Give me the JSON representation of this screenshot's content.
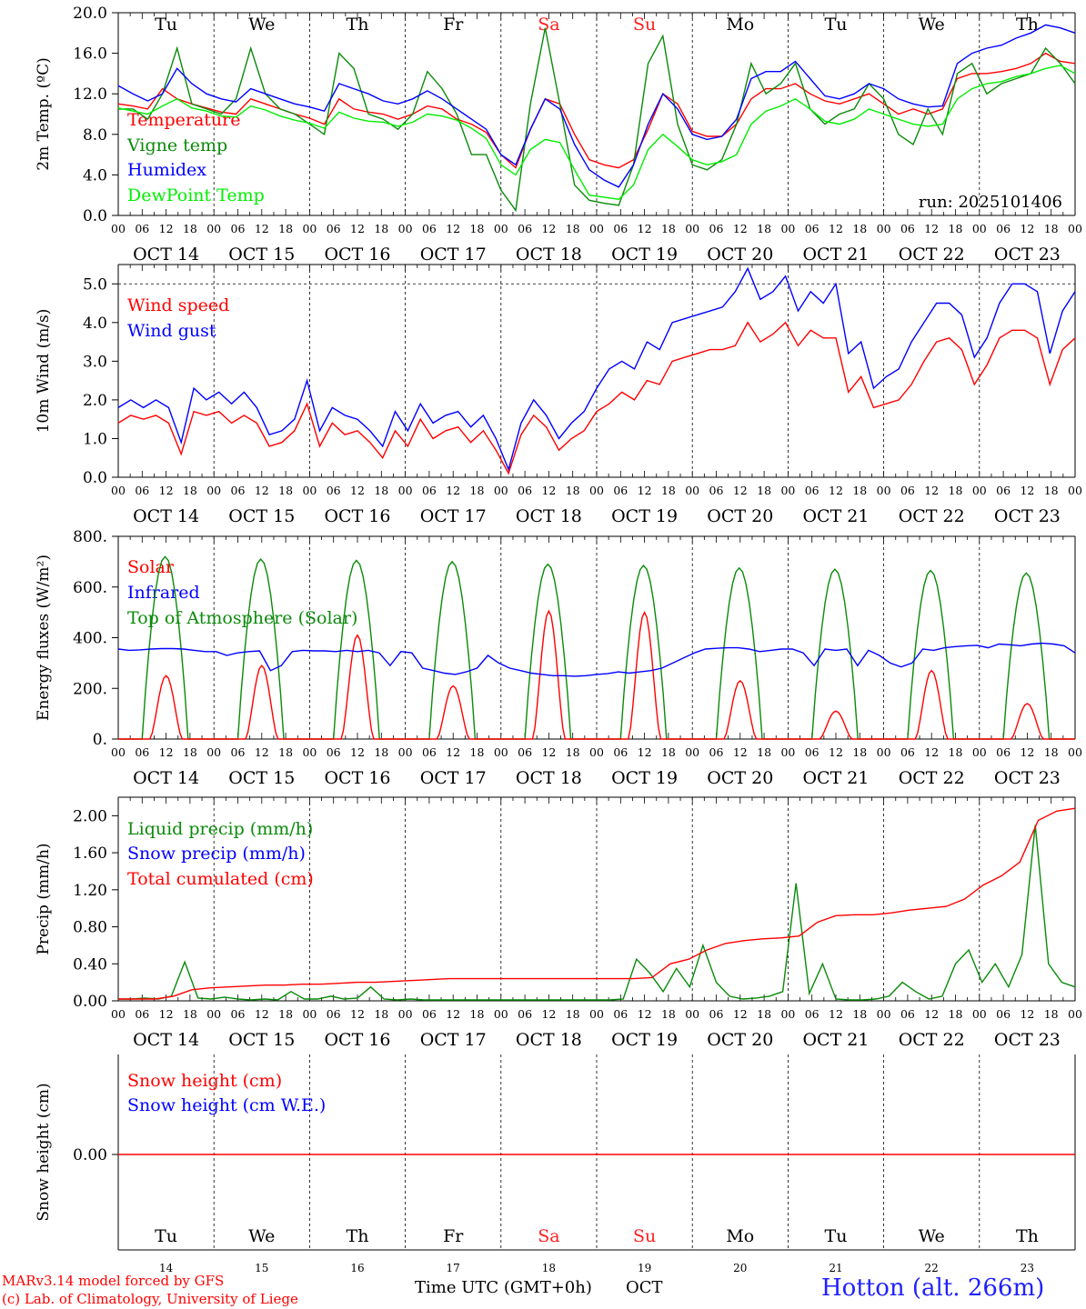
{
  "station": "Hotton (alt. 266m)",
  "credits": [
    "MARv3.14 model forced by GFS",
    "(c) Lab. of Climatology, University of Liege"
  ],
  "x_axis": {
    "title": "Time UTC (GMT+0h)",
    "month": "OCT",
    "hour_ticks": [
      "00",
      "06",
      "12",
      "18"
    ],
    "dates": [
      "OCT 14",
      "OCT 15",
      "OCT 16",
      "OCT 17",
      "OCT 18",
      "OCT 19",
      "OCT 20",
      "OCT 21",
      "OCT 22",
      "OCT 23"
    ],
    "day_numbers": [
      "14",
      "15",
      "16",
      "17",
      "18",
      "19",
      "20",
      "21",
      "22",
      "23"
    ],
    "weekdays": [
      "Tu",
      "We",
      "Th",
      "Fr",
      "Sa",
      "Su",
      "Mo",
      "Tu",
      "We",
      "Th"
    ],
    "weekend_color": "#ff2020"
  },
  "chart_data": [
    {
      "type": "line",
      "ylabel": "2m Temp. (ºC)",
      "ylim": [
        0,
        20
      ],
      "yticks": [
        "0.0",
        "4.0",
        "8.0",
        "12.0",
        "16.0",
        "20.0"
      ],
      "annotation": "run: 2025101406",
      "series": [
        {
          "name": "Temperature",
          "color": "#ff0000",
          "values": [
            11,
            10.8,
            10.5,
            12.5,
            11.5,
            11,
            10.6,
            10.2,
            10,
            11.5,
            11,
            10.5,
            10,
            9.6,
            9,
            11.5,
            10.5,
            10.2,
            10,
            9.5,
            10,
            10.8,
            10.5,
            9.5,
            9,
            8.2,
            6,
            4.7,
            8.5,
            11.5,
            11,
            8,
            5.5,
            5,
            4.7,
            5.5,
            8.5,
            12,
            11,
            8.3,
            7.8,
            7.8,
            9,
            11.5,
            12.5,
            12.5,
            13,
            12,
            11.3,
            11,
            11.5,
            12,
            11,
            10,
            10.5,
            10,
            10.5,
            13.5,
            14,
            14,
            14.2,
            14.5,
            15,
            16,
            15.2,
            15
          ]
        },
        {
          "name": "Vigne temp",
          "color": "#0a8a0a",
          "values": [
            10.5,
            10.5,
            9.5,
            12,
            16.5,
            11,
            10.5,
            10,
            11.5,
            16.5,
            12,
            10.5,
            10,
            9,
            8,
            16,
            14.5,
            10,
            9.5,
            8.5,
            10,
            14.2,
            12.5,
            10,
            6,
            6,
            2.5,
            0.5,
            11,
            18.5,
            11,
            3,
            1.5,
            1.2,
            1,
            5,
            15,
            17.7,
            9,
            5,
            4.5,
            5.5,
            9,
            15,
            12,
            13,
            15,
            10.5,
            9,
            10,
            10.5,
            13,
            11.5,
            8,
            7,
            10.5,
            8,
            14,
            15,
            12,
            13,
            13.5,
            14,
            16.5,
            15,
            13
          ]
        },
        {
          "name": "Humidex",
          "color": "#0000ff",
          "values": [
            12.8,
            12,
            11.3,
            12,
            14.5,
            13,
            12,
            11.5,
            11.2,
            12.5,
            12,
            11.5,
            11,
            10.7,
            10.3,
            13,
            12.5,
            12,
            11.3,
            11,
            11.5,
            12.3,
            11.5,
            10.5,
            9.5,
            8.5,
            6,
            5,
            8.5,
            11.5,
            10.5,
            7,
            4.5,
            3.5,
            2.8,
            5,
            9,
            12,
            10.5,
            8,
            7.5,
            7.8,
            9.5,
            13.5,
            14.2,
            14.2,
            15.2,
            13.5,
            11.8,
            11.5,
            12,
            13,
            12.5,
            11.5,
            11,
            10.7,
            10.8,
            15,
            16,
            16.5,
            16.8,
            17.5,
            18,
            18.8,
            18.5,
            18
          ]
        },
        {
          "name": "DewPoint Temp",
          "color": "#00ee00",
          "values": [
            10.6,
            10.3,
            10,
            10.8,
            11.5,
            10.6,
            10.3,
            9.8,
            9.7,
            10.8,
            10.4,
            9.8,
            9.4,
            9.1,
            8.6,
            10.2,
            9.6,
            9.3,
            9.2,
            8.8,
            9.2,
            10,
            9.8,
            9.4,
            8.6,
            7.6,
            5,
            4,
            6.5,
            7.5,
            7.2,
            4.5,
            2,
            1.8,
            1.6,
            3,
            6.5,
            8,
            6.8,
            5.5,
            5,
            5.3,
            6,
            9,
            10.3,
            10.8,
            11.5,
            10.5,
            9.3,
            9,
            9.5,
            10.5,
            10,
            9.5,
            9,
            8.8,
            9,
            11.5,
            12.5,
            13,
            13.2,
            13.7,
            14,
            14.5,
            14.8,
            14
          ]
        }
      ]
    },
    {
      "type": "line",
      "ylabel": "10m Wind (m/s)",
      "ylim": [
        0,
        5.5
      ],
      "yticks": [
        "0.0",
        "1.0",
        "2.0",
        "3.0",
        "4.0",
        "5.0"
      ],
      "reference_line": 5,
      "series": [
        {
          "name": "Wind speed",
          "color": "#ff0000",
          "values": [
            1.4,
            1.6,
            1.5,
            1.6,
            1.4,
            0.6,
            1.7,
            1.6,
            1.7,
            1.4,
            1.6,
            1.4,
            0.8,
            0.9,
            1.2,
            1.9,
            0.8,
            1.4,
            1.1,
            1.2,
            0.9,
            0.5,
            1.2,
            0.8,
            1.5,
            1,
            1.2,
            1.3,
            0.9,
            1.2,
            0.7,
            0.1,
            1.1,
            1.6,
            1.3,
            0.7,
            1,
            1.2,
            1.7,
            1.9,
            2.2,
            2,
            2.5,
            2.4,
            3,
            3.1,
            3.2,
            3.3,
            3.3,
            3.4,
            4,
            3.5,
            3.7,
            4,
            3.4,
            3.8,
            3.6,
            3.6,
            2.2,
            2.6,
            1.8,
            1.9,
            2,
            2.4,
            3,
            3.5,
            3.6,
            3.3,
            2.4,
            2.9,
            3.6,
            3.8,
            3.8,
            3.6,
            2.4,
            3.3,
            3.6
          ]
        },
        {
          "name": "Wind gust",
          "color": "#0000ff",
          "values": [
            1.8,
            2,
            1.8,
            2,
            1.8,
            0.9,
            2.3,
            2,
            2.2,
            1.9,
            2.2,
            1.8,
            1.1,
            1.2,
            1.5,
            2.5,
            1.2,
            1.8,
            1.6,
            1.5,
            1.2,
            0.8,
            1.7,
            1.2,
            1.9,
            1.4,
            1.6,
            1.7,
            1.3,
            1.6,
            1,
            0.2,
            1.4,
            2,
            1.6,
            1,
            1.4,
            1.7,
            2.3,
            2.8,
            3,
            2.8,
            3.5,
            3.3,
            4,
            4.1,
            4.2,
            4.3,
            4.4,
            4.8,
            5.4,
            4.6,
            4.8,
            5.2,
            4.3,
            4.8,
            4.5,
            5,
            3.2,
            3.5,
            2.3,
            2.6,
            2.8,
            3.5,
            4,
            4.5,
            4.5,
            4.2,
            3.1,
            3.6,
            4.5,
            5,
            5,
            4.8,
            3.2,
            4.3,
            4.8
          ]
        }
      ]
    },
    {
      "type": "line",
      "ylabel": "Energy fluxes (W/m²)",
      "ylim": [
        0,
        800
      ],
      "yticks": [
        "0.",
        "200.",
        "400.",
        "600.",
        "800."
      ],
      "series": [
        {
          "name": "Solar",
          "color": "#ff0000",
          "peaks": [
            250,
            290,
            410,
            210,
            505,
            500,
            230,
            110,
            270,
            140
          ]
        },
        {
          "name": "Infrared",
          "color": "#0000ff",
          "values": [
            355,
            350,
            352,
            355,
            357,
            357,
            355,
            350,
            345,
            345,
            330,
            340,
            345,
            348,
            270,
            290,
            345,
            350,
            348,
            348,
            345,
            350,
            345,
            350,
            340,
            290,
            345,
            340,
            280,
            270,
            260,
            255,
            265,
            280,
            330,
            300,
            280,
            270,
            260,
            255,
            250,
            250,
            248,
            250,
            255,
            258,
            265,
            260,
            265,
            270,
            280,
            300,
            320,
            340,
            355,
            358,
            360,
            360,
            355,
            345,
            350,
            355,
            355,
            340,
            290,
            355,
            350,
            355,
            290,
            350,
            330,
            300,
            285,
            300,
            355,
            350,
            360,
            365,
            368,
            370,
            360,
            375,
            372,
            368,
            375,
            378,
            375,
            368,
            340
          ]
        },
        {
          "name": "Top of Atmosphere (Solar)",
          "color": "#0a8a0a",
          "peaks": [
            720,
            710,
            705,
            700,
            690,
            685,
            675,
            670,
            665,
            655
          ]
        }
      ]
    },
    {
      "type": "line",
      "ylabel": "Precip (mm/h)",
      "ylim": [
        0,
        2.2
      ],
      "yticks": [
        "0.00",
        "0.40",
        "0.80",
        "1.20",
        "1.60",
        "2.00"
      ],
      "series": [
        {
          "name": "Liquid precip (mm/h)",
          "color": "#0a8a0a",
          "values": [
            0.02,
            0.02,
            0.03,
            0.02,
            0.05,
            0.42,
            0.03,
            0.02,
            0.04,
            0.02,
            0.01,
            0.02,
            0.01,
            0.1,
            0.02,
            0.02,
            0.05,
            0.02,
            0.03,
            0.15,
            0.02,
            0.01,
            0.02,
            0.01,
            0.01,
            0.01,
            0.01,
            0.01,
            0.01,
            0.01,
            0.01,
            0.01,
            0.01,
            0.01,
            0.01,
            0.01,
            0.01,
            0.01,
            0.02,
            0.45,
            0.3,
            0.1,
            0.35,
            0.15,
            0.6,
            0.2,
            0.05,
            0.02,
            0.03,
            0.05,
            0.1,
            1.27,
            0.08,
            0.4,
            0.02,
            0.01,
            0.01,
            0.02,
            0.05,
            0.2,
            0.1,
            0.02,
            0.05,
            0.4,
            0.55,
            0.2,
            0.4,
            0.15,
            0.5,
            1.9,
            0.4,
            0.2,
            0.15
          ]
        },
        {
          "name": "Snow precip (mm/h)",
          "color": "#0000ff",
          "values": [
            0
          ]
        },
        {
          "name": "Total cumulated (cm)",
          "color": "#ff0000",
          "values": [
            0.02,
            0.02,
            0.02,
            0.05,
            0.12,
            0.14,
            0.15,
            0.16,
            0.17,
            0.17,
            0.18,
            0.18,
            0.19,
            0.2,
            0.2,
            0.21,
            0.22,
            0.23,
            0.24,
            0.24,
            0.24,
            0.24,
            0.24,
            0.24,
            0.24,
            0.24,
            0.24,
            0.24,
            0.24,
            0.25,
            0.4,
            0.45,
            0.55,
            0.62,
            0.65,
            0.67,
            0.68,
            0.7,
            0.85,
            0.92,
            0.93,
            0.93,
            0.95,
            0.98,
            1,
            1.02,
            1.1,
            1.25,
            1.35,
            1.5,
            1.95,
            2.05,
            2.08
          ]
        }
      ]
    },
    {
      "type": "line",
      "ylabel": "Snow height (cm)",
      "yticks": [
        "0.00"
      ],
      "series": [
        {
          "name": "Snow height (cm)",
          "color": "#ff0000",
          "values": [
            0
          ]
        },
        {
          "name": "Snow height (cm W.E.)",
          "color": "#0000ff",
          "values": [
            0
          ]
        }
      ]
    }
  ]
}
